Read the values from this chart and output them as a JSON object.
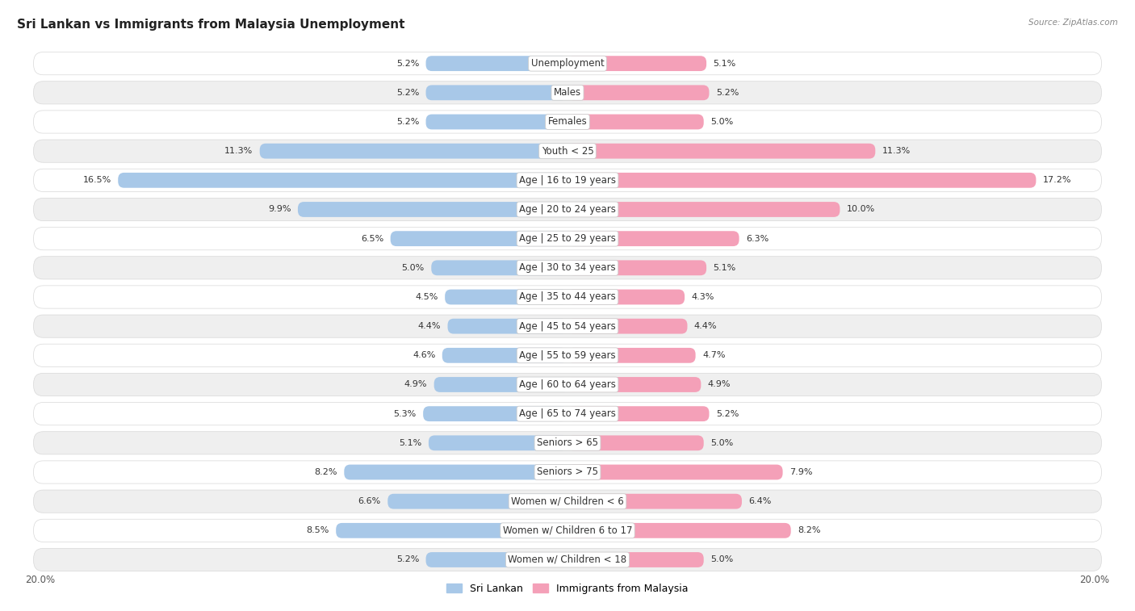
{
  "title": "Sri Lankan vs Immigrants from Malaysia Unemployment",
  "source": "Source: ZipAtlas.com",
  "categories": [
    "Unemployment",
    "Males",
    "Females",
    "Youth < 25",
    "Age | 16 to 19 years",
    "Age | 20 to 24 years",
    "Age | 25 to 29 years",
    "Age | 30 to 34 years",
    "Age | 35 to 44 years",
    "Age | 45 to 54 years",
    "Age | 55 to 59 years",
    "Age | 60 to 64 years",
    "Age | 65 to 74 years",
    "Seniors > 65",
    "Seniors > 75",
    "Women w/ Children < 6",
    "Women w/ Children 6 to 17",
    "Women w/ Children < 18"
  ],
  "sri_lankan": [
    5.2,
    5.2,
    5.2,
    11.3,
    16.5,
    9.9,
    6.5,
    5.0,
    4.5,
    4.4,
    4.6,
    4.9,
    5.3,
    5.1,
    8.2,
    6.6,
    8.5,
    5.2
  ],
  "immigrants": [
    5.1,
    5.2,
    5.0,
    11.3,
    17.2,
    10.0,
    6.3,
    5.1,
    4.3,
    4.4,
    4.7,
    4.9,
    5.2,
    5.0,
    7.9,
    6.4,
    8.2,
    5.0
  ],
  "blue_color": "#A8C8E8",
  "pink_color": "#F4A0B8",
  "row_bg_white": "#FFFFFF",
  "row_bg_gray": "#EFEFEF",
  "axis_max": 20.0,
  "title_fontsize": 11,
  "label_fontsize": 8.5,
  "value_fontsize": 8.0,
  "legend_fontsize": 9.0
}
